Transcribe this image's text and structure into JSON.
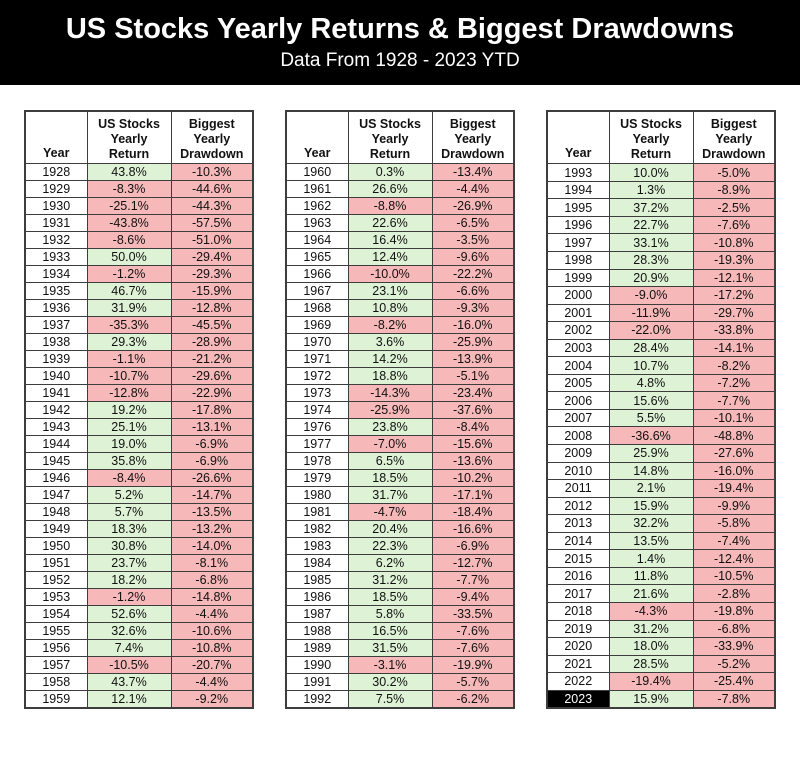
{
  "header": {
    "title": "US Stocks Yearly Returns & Biggest Drawdowns",
    "subtitle": "Data From 1928 - 2023 YTD"
  },
  "colors": {
    "banner_bg": "#000000",
    "banner_text": "#ffffff",
    "positive_cell_bg": "#def2d5",
    "negative_cell_bg": "#f6b8b8",
    "grid_line": "#3d3d3d",
    "highlight_year_bg": "#000000",
    "highlight_year_text": "#ffffff"
  },
  "chart_data": {
    "type": "table",
    "title": "US Stocks Yearly Returns & Biggest Drawdowns",
    "subtitle": "Data From 1928 - 2023 YTD",
    "columns": [
      "Year",
      "US Stocks Yearly Return",
      "Biggest Yearly Drawdown"
    ],
    "highlight_year": "2023",
    "tables": [
      [
        [
          "1928",
          "43.8%",
          "-10.3%"
        ],
        [
          "1929",
          "-8.3%",
          "-44.6%"
        ],
        [
          "1930",
          "-25.1%",
          "-44.3%"
        ],
        [
          "1931",
          "-43.8%",
          "-57.5%"
        ],
        [
          "1932",
          "-8.6%",
          "-51.0%"
        ],
        [
          "1933",
          "50.0%",
          "-29.4%"
        ],
        [
          "1934",
          "-1.2%",
          "-29.3%"
        ],
        [
          "1935",
          "46.7%",
          "-15.9%"
        ],
        [
          "1936",
          "31.9%",
          "-12.8%"
        ],
        [
          "1937",
          "-35.3%",
          "-45.5%"
        ],
        [
          "1938",
          "29.3%",
          "-28.9%"
        ],
        [
          "1939",
          "-1.1%",
          "-21.2%"
        ],
        [
          "1940",
          "-10.7%",
          "-29.6%"
        ],
        [
          "1941",
          "-12.8%",
          "-22.9%"
        ],
        [
          "1942",
          "19.2%",
          "-17.8%"
        ],
        [
          "1943",
          "25.1%",
          "-13.1%"
        ],
        [
          "1944",
          "19.0%",
          "-6.9%"
        ],
        [
          "1945",
          "35.8%",
          "-6.9%"
        ],
        [
          "1946",
          "-8.4%",
          "-26.6%"
        ],
        [
          "1947",
          "5.2%",
          "-14.7%"
        ],
        [
          "1948",
          "5.7%",
          "-13.5%"
        ],
        [
          "1949",
          "18.3%",
          "-13.2%"
        ],
        [
          "1950",
          "30.8%",
          "-14.0%"
        ],
        [
          "1951",
          "23.7%",
          "-8.1%"
        ],
        [
          "1952",
          "18.2%",
          "-6.8%"
        ],
        [
          "1953",
          "-1.2%",
          "-14.8%"
        ],
        [
          "1954",
          "52.6%",
          "-4.4%"
        ],
        [
          "1955",
          "32.6%",
          "-10.6%"
        ],
        [
          "1956",
          "7.4%",
          "-10.8%"
        ],
        [
          "1957",
          "-10.5%",
          "-20.7%"
        ],
        [
          "1958",
          "43.7%",
          "-4.4%"
        ],
        [
          "1959",
          "12.1%",
          "-9.2%"
        ]
      ],
      [
        [
          "1960",
          "0.3%",
          "-13.4%"
        ],
        [
          "1961",
          "26.6%",
          "-4.4%"
        ],
        [
          "1962",
          "-8.8%",
          "-26.9%"
        ],
        [
          "1963",
          "22.6%",
          "-6.5%"
        ],
        [
          "1964",
          "16.4%",
          "-3.5%"
        ],
        [
          "1965",
          "12.4%",
          "-9.6%"
        ],
        [
          "1966",
          "-10.0%",
          "-22.2%"
        ],
        [
          "1967",
          "23.1%",
          "-6.6%"
        ],
        [
          "1968",
          "10.8%",
          "-9.3%"
        ],
        [
          "1969",
          "-8.2%",
          "-16.0%"
        ],
        [
          "1970",
          "3.6%",
          "-25.9%"
        ],
        [
          "1971",
          "14.2%",
          "-13.9%"
        ],
        [
          "1972",
          "18.8%",
          "-5.1%"
        ],
        [
          "1973",
          "-14.3%",
          "-23.4%"
        ],
        [
          "1974",
          "-25.9%",
          "-37.6%"
        ],
        [
          "1976",
          "23.8%",
          "-8.4%"
        ],
        [
          "1977",
          "-7.0%",
          "-15.6%"
        ],
        [
          "1978",
          "6.5%",
          "-13.6%"
        ],
        [
          "1979",
          "18.5%",
          "-10.2%"
        ],
        [
          "1980",
          "31.7%",
          "-17.1%"
        ],
        [
          "1981",
          "-4.7%",
          "-18.4%"
        ],
        [
          "1982",
          "20.4%",
          "-16.6%"
        ],
        [
          "1983",
          "22.3%",
          "-6.9%"
        ],
        [
          "1984",
          "6.2%",
          "-12.7%"
        ],
        [
          "1985",
          "31.2%",
          "-7.7%"
        ],
        [
          "1986",
          "18.5%",
          "-9.4%"
        ],
        [
          "1987",
          "5.8%",
          "-33.5%"
        ],
        [
          "1988",
          "16.5%",
          "-7.6%"
        ],
        [
          "1989",
          "31.5%",
          "-7.6%"
        ],
        [
          "1990",
          "-3.1%",
          "-19.9%"
        ],
        [
          "1991",
          "30.2%",
          "-5.7%"
        ],
        [
          "1992",
          "7.5%",
          "-6.2%"
        ]
      ],
      [
        [
          "1993",
          "10.0%",
          "-5.0%"
        ],
        [
          "1994",
          "1.3%",
          "-8.9%"
        ],
        [
          "1995",
          "37.2%",
          "-2.5%"
        ],
        [
          "1996",
          "22.7%",
          "-7.6%"
        ],
        [
          "1997",
          "33.1%",
          "-10.8%"
        ],
        [
          "1998",
          "28.3%",
          "-19.3%"
        ],
        [
          "1999",
          "20.9%",
          "-12.1%"
        ],
        [
          "2000",
          "-9.0%",
          "-17.2%"
        ],
        [
          "2001",
          "-11.9%",
          "-29.7%"
        ],
        [
          "2002",
          "-22.0%",
          "-33.8%"
        ],
        [
          "2003",
          "28.4%",
          "-14.1%"
        ],
        [
          "2004",
          "10.7%",
          "-8.2%"
        ],
        [
          "2005",
          "4.8%",
          "-7.2%"
        ],
        [
          "2006",
          "15.6%",
          "-7.7%"
        ],
        [
          "2007",
          "5.5%",
          "-10.1%"
        ],
        [
          "2008",
          "-36.6%",
          "-48.8%"
        ],
        [
          "2009",
          "25.9%",
          "-27.6%"
        ],
        [
          "2010",
          "14.8%",
          "-16.0%"
        ],
        [
          "2011",
          "2.1%",
          "-19.4%"
        ],
        [
          "2012",
          "15.9%",
          "-9.9%"
        ],
        [
          "2013",
          "32.2%",
          "-5.8%"
        ],
        [
          "2014",
          "13.5%",
          "-7.4%"
        ],
        [
          "2015",
          "1.4%",
          "-12.4%"
        ],
        [
          "2016",
          "11.8%",
          "-10.5%"
        ],
        [
          "2017",
          "21.6%",
          "-2.8%"
        ],
        [
          "2018",
          "-4.3%",
          "-19.8%"
        ],
        [
          "2019",
          "31.2%",
          "-6.8%"
        ],
        [
          "2020",
          "18.0%",
          "-33.9%"
        ],
        [
          "2021",
          "28.5%",
          "-5.2%"
        ],
        [
          "2022",
          "-19.4%",
          "-25.4%"
        ],
        [
          "2023",
          "15.9%",
          "-7.8%"
        ]
      ]
    ]
  }
}
